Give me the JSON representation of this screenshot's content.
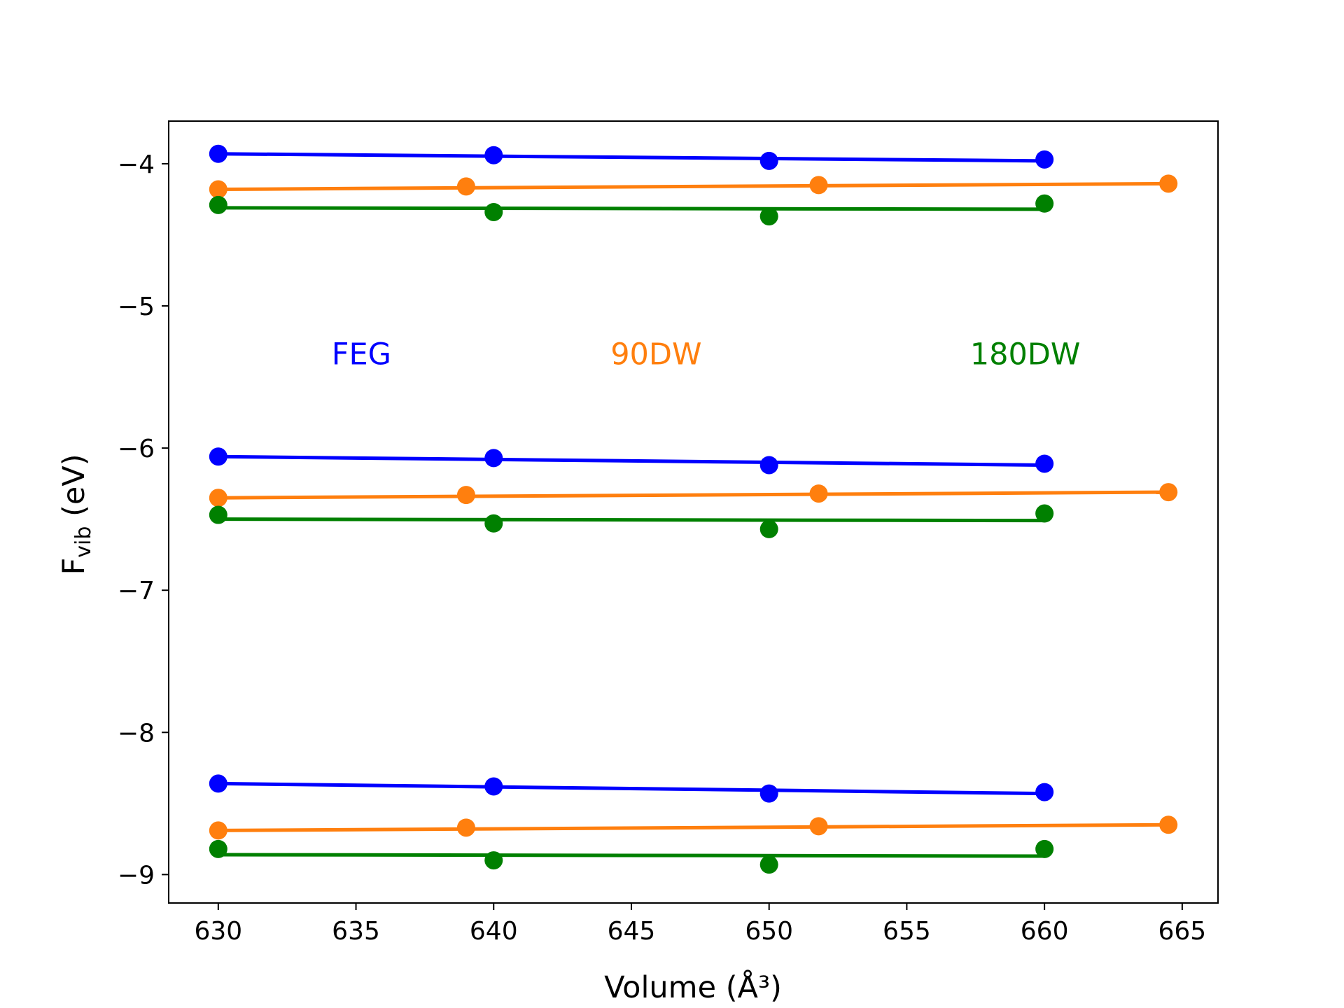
{
  "chart_data": {
    "type": "scatter",
    "title": "",
    "xlabel": "Volume (Å³)",
    "ylabel_main": "F",
    "ylabel_sub": "vib",
    "ylabel_rest": " (eV)",
    "xlim": [
      628.2,
      666.3
    ],
    "ylim": [
      -9.2,
      -3.7
    ],
    "xticks": [
      630,
      635,
      640,
      645,
      650,
      655,
      660,
      665
    ],
    "yticks": [
      -4,
      -5,
      -6,
      -7,
      -8,
      -9
    ],
    "ytick_labels": [
      "−4",
      "−5",
      "−6",
      "−7",
      "−8",
      "−9"
    ],
    "grid": false,
    "annotations": [
      {
        "text": "FEG",
        "x": 635.2,
        "y": -5.41,
        "color": "#0000ff"
      },
      {
        "text": "90DW",
        "x": 645.9,
        "y": -5.41,
        "color": "#ff7f0e"
      },
      {
        "text": "180DW",
        "x": 659.3,
        "y": -5.41,
        "color": "#008000"
      }
    ],
    "series": [
      {
        "group": "FEG",
        "color": "#0000ff",
        "points": [
          [
            630,
            -3.93
          ],
          [
            640,
            -3.94
          ],
          [
            650,
            -3.98
          ],
          [
            660,
            -3.97
          ]
        ],
        "fit": [
          [
            630,
            -3.93
          ],
          [
            660,
            -3.98
          ]
        ]
      },
      {
        "group": "90DW",
        "color": "#ff7f0e",
        "points": [
          [
            630,
            -4.18
          ],
          [
            639,
            -4.16
          ],
          [
            651.8,
            -4.15
          ],
          [
            664.5,
            -4.14
          ]
        ],
        "fit": [
          [
            630,
            -4.18
          ],
          [
            664.5,
            -4.14
          ]
        ]
      },
      {
        "group": "180DW",
        "color": "#008000",
        "points": [
          [
            630,
            -4.29
          ],
          [
            640,
            -4.34
          ],
          [
            650,
            -4.37
          ],
          [
            660,
            -4.28
          ]
        ],
        "fit": [
          [
            630,
            -4.31
          ],
          [
            660,
            -4.32
          ]
        ]
      },
      {
        "group": "FEG",
        "color": "#0000ff",
        "points": [
          [
            630,
            -6.06
          ],
          [
            640,
            -6.07
          ],
          [
            650,
            -6.12
          ],
          [
            660,
            -6.11
          ]
        ],
        "fit": [
          [
            630,
            -6.06
          ],
          [
            660,
            -6.12
          ]
        ]
      },
      {
        "group": "90DW",
        "color": "#ff7f0e",
        "points": [
          [
            630,
            -6.35
          ],
          [
            639,
            -6.33
          ],
          [
            651.8,
            -6.32
          ],
          [
            664.5,
            -6.31
          ]
        ],
        "fit": [
          [
            630,
            -6.35
          ],
          [
            664.5,
            -6.31
          ]
        ]
      },
      {
        "group": "180DW",
        "color": "#008000",
        "points": [
          [
            630,
            -6.47
          ],
          [
            640,
            -6.53
          ],
          [
            650,
            -6.57
          ],
          [
            660,
            -6.46
          ]
        ],
        "fit": [
          [
            630,
            -6.5
          ],
          [
            660,
            -6.51
          ]
        ]
      },
      {
        "group": "FEG",
        "color": "#0000ff",
        "points": [
          [
            630,
            -8.36
          ],
          [
            640,
            -8.38
          ],
          [
            650,
            -8.43
          ],
          [
            660,
            -8.42
          ]
        ],
        "fit": [
          [
            630,
            -8.36
          ],
          [
            660,
            -8.43
          ]
        ]
      },
      {
        "group": "90DW",
        "color": "#ff7f0e",
        "points": [
          [
            630,
            -8.69
          ],
          [
            639,
            -8.67
          ],
          [
            651.8,
            -8.66
          ],
          [
            664.5,
            -8.65
          ]
        ],
        "fit": [
          [
            630,
            -8.69
          ],
          [
            664.5,
            -8.65
          ]
        ]
      },
      {
        "group": "180DW",
        "color": "#008000",
        "points": [
          [
            630,
            -8.82
          ],
          [
            640,
            -8.9
          ],
          [
            650,
            -8.93
          ],
          [
            660,
            -8.82
          ]
        ],
        "fit": [
          [
            630,
            -8.86
          ],
          [
            660,
            -8.87
          ]
        ]
      }
    ]
  }
}
